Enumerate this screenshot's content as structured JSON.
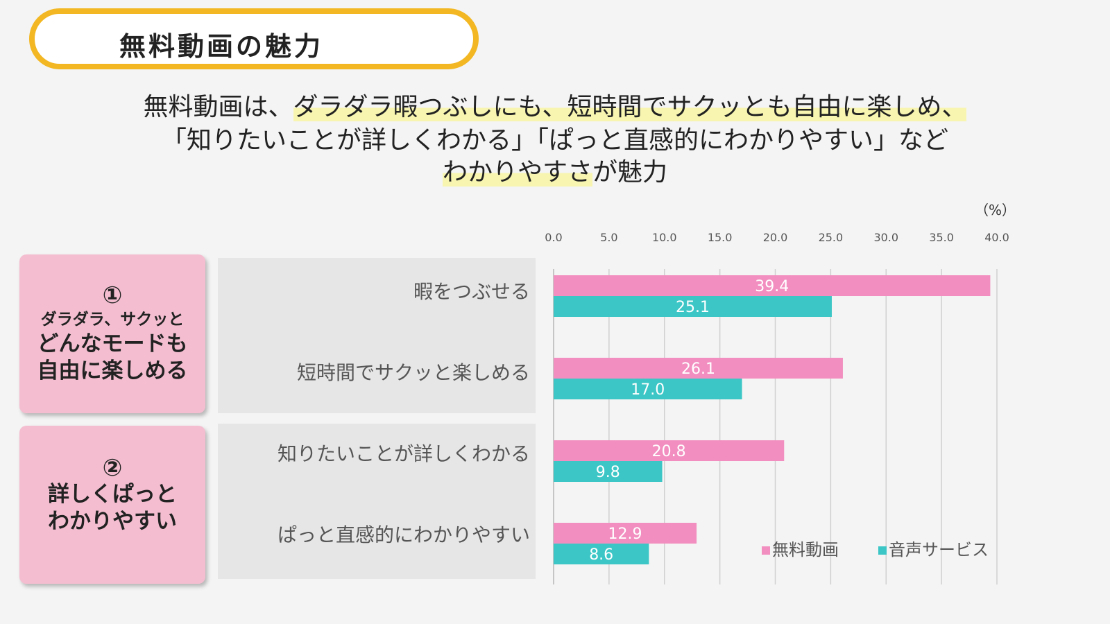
{
  "title": "無料動画の魅力",
  "lead": {
    "line1_prefix": "無料動画は、",
    "line1_highlight": "ダラダラ暇つぶしにも、短時間でサクッとも自由に楽しめ、",
    "line2": "「知りたいことが詳しくわかる」「ぱっと直感的にわかりやすい」など",
    "line3_highlight": "わかりやすさ",
    "line3_suffix": "が魅力"
  },
  "groups": [
    {
      "number": "①",
      "sub": "ダラダラ、サクッと",
      "main_line1": "どんなモードも",
      "main_line2": "自由に楽しめる"
    },
    {
      "number": "②",
      "main_line1": "詳しくぱっと",
      "main_line2": "わかりやすい"
    }
  ],
  "unit_label": "（%）",
  "colors": {
    "series1": "#f28fc0",
    "series2": "#3cc6c6",
    "accent": "#f2b722",
    "card": "#f4bed0"
  },
  "chart_data": {
    "type": "bar",
    "orientation": "horizontal",
    "categories": [
      "暇をつぶせる",
      "短時間でサクッと楽しめる",
      "知りたいことが詳しくわかる",
      "ぱっと直感的にわかりやすい"
    ],
    "series": [
      {
        "name": "無料動画",
        "values": [
          39.4,
          26.1,
          20.8,
          12.9
        ]
      },
      {
        "name": "音声サービス",
        "values": [
          25.1,
          17.0,
          9.8,
          8.6
        ]
      }
    ],
    "xlim": [
      0,
      40
    ],
    "ticks": [
      "0.0",
      "5.0",
      "10.0",
      "15.0",
      "20.0",
      "25.0",
      "30.0",
      "35.0",
      "40.0"
    ],
    "grid": true,
    "legend_position": "bottom-right"
  }
}
